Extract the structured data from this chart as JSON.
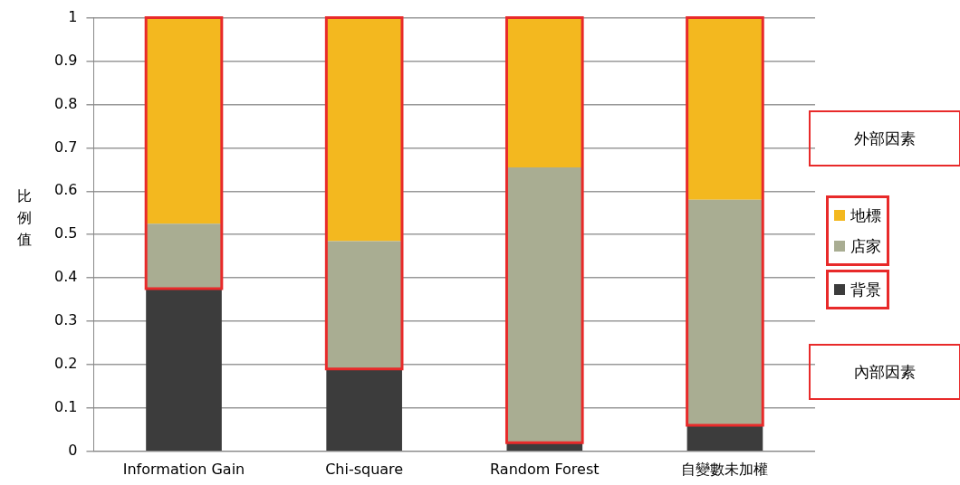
{
  "chart_data": {
    "type": "bar",
    "ylabel": "比例值",
    "categories": [
      "Information Gain",
      "Chi-square",
      "Random Forest",
      "自變數未加權"
    ],
    "stacked": true,
    "ylim": [
      0,
      1
    ],
    "yticks": [
      0,
      0.1,
      0.2,
      0.3,
      0.4,
      0.5,
      0.6,
      0.7,
      0.8,
      0.9,
      1
    ],
    "grid": "y",
    "legend": "right",
    "series": [
      {
        "name": "背景",
        "color": "#3c3c3c",
        "values": [
          0.375,
          0.19,
          0.02,
          0.06
        ]
      },
      {
        "name": "店家",
        "color": "#a9ad92",
        "values": [
          0.15,
          0.295,
          0.635,
          0.52
        ]
      },
      {
        "name": "地標",
        "color": "#f3b81f",
        "values": [
          0.475,
          0.515,
          0.345,
          0.42
        ]
      }
    ],
    "annotations": [
      "外部因素",
      "內部因素"
    ]
  }
}
